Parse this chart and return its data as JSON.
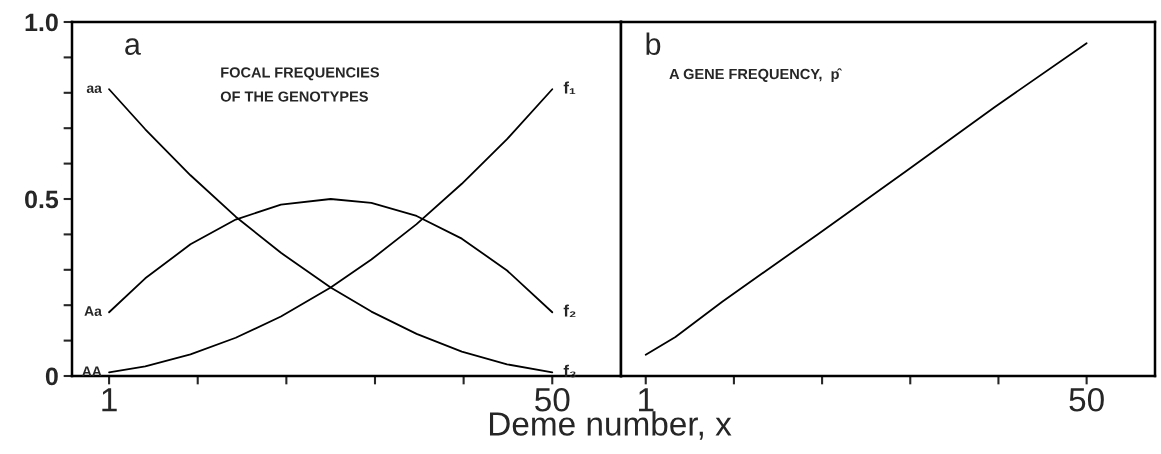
{
  "chart_data": [
    {
      "type": "line",
      "xlabel": "Deme number, x",
      "x": [
        1,
        5,
        10,
        15,
        20,
        25.5,
        30,
        35,
        40,
        45,
        50
      ],
      "series": [
        {
          "name": "aa",
          "color": "#000000",
          "values": [
            0.81,
            0.697,
            0.567,
            0.45,
            0.348,
            0.25,
            0.182,
            0.119,
            0.069,
            0.033,
            0.01
          ]
        },
        {
          "name": "Aa",
          "color": "#000000",
          "values": [
            0.18,
            0.276,
            0.372,
            0.442,
            0.484,
            0.5,
            0.489,
            0.452,
            0.388,
            0.298,
            0.18
          ]
        },
        {
          "name": "AA",
          "color": "#000000",
          "values": [
            0.01,
            0.027,
            0.061,
            0.108,
            0.168,
            0.25,
            0.329,
            0.429,
            0.543,
            0.669,
            0.81
          ]
        }
      ],
      "annotations": [
        "a",
        "FOCAL FREQUENCIES\nOF THE GENOTYPES",
        "f₁",
        "f₂",
        "f₃"
      ],
      "xlim": [
        -3.1,
        57.6
      ],
      "ylim": [
        0,
        1.0
      ],
      "xticks": [
        1,
        {
          "value": 10.8,
          "label": null
        },
        {
          "value": 20.6,
          "label": null
        },
        {
          "value": 30.4,
          "label": null
        },
        {
          "value": 40.2,
          "label": null
        },
        50
      ],
      "yticks": [
        {
          "value": 0,
          "label": "0"
        },
        {
          "value": 0.1,
          "label": null
        },
        {
          "value": 0.2,
          "label": null
        },
        {
          "value": 0.3,
          "label": null
        },
        {
          "value": 0.4,
          "label": null
        },
        0.5,
        {
          "value": 0.6,
          "label": null
        },
        {
          "value": 0.7,
          "label": null
        },
        {
          "value": 0.8,
          "label": null
        },
        {
          "value": 0.9,
          "label": null
        },
        {
          "value": 1.0,
          "label": "1.0"
        }
      ],
      "grid": false,
      "legend": false
    },
    {
      "type": "line",
      "x": [
        1,
        4.3,
        9.5,
        20.1,
        30,
        39.8,
        50
      ],
      "series": [
        {
          "color": "#000000",
          "values": [
            0.06,
            0.11,
            0.21,
            0.4,
            0.58,
            0.76,
            0.94
          ]
        }
      ],
      "annotations": [
        "b",
        "A GENE FREQUENCY,  p̂"
      ],
      "xlim": [
        -1.75,
        57.6
      ],
      "ylim": [
        0,
        1.0
      ],
      "xticks": [
        1,
        {
          "value": 10.8,
          "label": null
        },
        {
          "value": 20.6,
          "label": null
        },
        {
          "value": 30.4,
          "label": null
        },
        {
          "value": 40.2,
          "label": null
        },
        50
      ],
      "tick_labels": "x",
      "grid": false,
      "legend": false
    }
  ]
}
